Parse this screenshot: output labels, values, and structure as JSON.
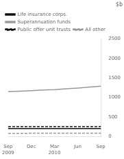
{
  "chart_data": {
    "type": "line",
    "ylabel": "$b",
    "categories": [
      "Sep\n2009",
      null,
      "Dec",
      null,
      "Mar\n2010",
      null,
      "Jun",
      null,
      "Sep"
    ],
    "series": [
      {
        "name": "Life insurance corps.",
        "color": "#111111",
        "line_style": "solid",
        "values": [
          200,
          200,
          201,
          201,
          201,
          202,
          202,
          202,
          203
        ]
      },
      {
        "name": "Superannuation funds",
        "color": "#999999",
        "line_style": "solid",
        "values": [
          1150,
          1160,
          1175,
          1190,
          1200,
          1220,
          1240,
          1265,
          1290
        ]
      },
      {
        "name": "Public offer unit trusts",
        "color": "#111111",
        "line_style": "dashed",
        "values": [
          250,
          250,
          251,
          251,
          251,
          252,
          252,
          252,
          253
        ]
      },
      {
        "name": "All other",
        "color": "#999999",
        "line_style": "dashed",
        "values": [
          80,
          80,
          81,
          81,
          81,
          82,
          82,
          82,
          83
        ]
      }
    ],
    "ylim": [
      0,
      2500
    ],
    "yticks": [
      0,
      500,
      1000,
      1500,
      2000,
      2500
    ],
    "grid": false,
    "legend": "upper left"
  }
}
